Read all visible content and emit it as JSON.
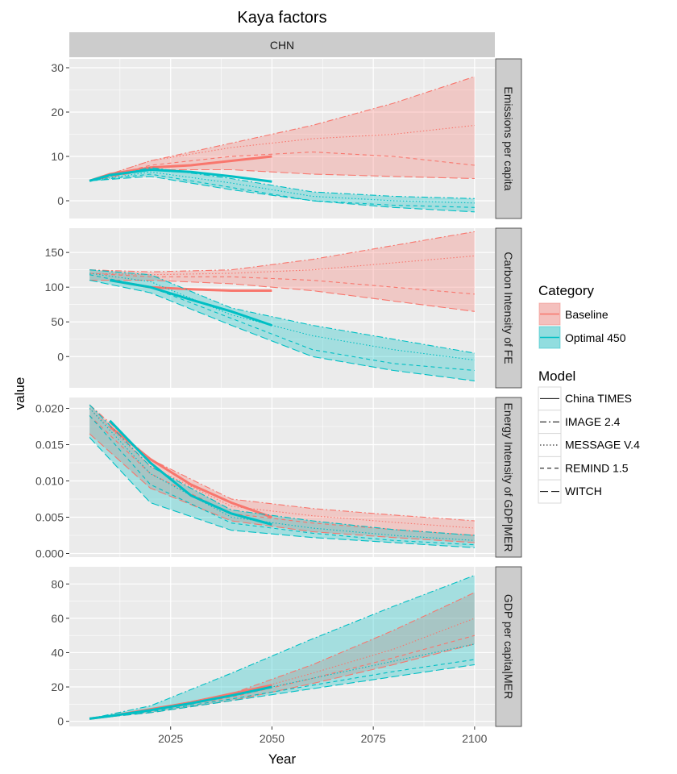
{
  "chart_data": {
    "type": "line",
    "title": "Kaya factors",
    "facet_label": "CHN",
    "xlabel": "Year",
    "ylabel": "value",
    "xlim": [
      2000,
      2105
    ],
    "x_ticks": [
      2025,
      2050,
      2075,
      2100
    ],
    "grid": true,
    "colors": {
      "Baseline": "#F8766D",
      "Optimal 450": "#00BFC4",
      "panel_bg": "#EBEBEB",
      "strip_bg": "#CCCCCC"
    },
    "legend": {
      "position": "right",
      "category_title": "Category",
      "categories": [
        "Baseline",
        "Optimal 450"
      ],
      "model_title": "Model",
      "models": [
        {
          "name": "China TIMES",
          "dash": "solid"
        },
        {
          "name": "IMAGE 2.4",
          "dash": "dashdot"
        },
        {
          "name": "MESSAGE V.4",
          "dash": "dotted"
        },
        {
          "name": "REMIND 1.5",
          "dash": "dashed"
        },
        {
          "name": "WITCH",
          "dash": "longdash"
        }
      ]
    },
    "panels": [
      {
        "strip": "Emissions per capita",
        "ylim": [
          -4,
          32
        ],
        "yticks": [
          0,
          10,
          20,
          30
        ],
        "ytick_labels": [
          "0",
          "10",
          "20",
          "30"
        ],
        "series": [
          {
            "category": "Baseline",
            "model": "China TIMES",
            "x": [
              2005,
              2010,
              2020,
              2030,
              2040,
              2050
            ],
            "y": [
              4.5,
              6.0,
              7.5,
              8.0,
              9.0,
              10.0
            ]
          },
          {
            "category": "Baseline",
            "model": "IMAGE 2.4",
            "x": [
              2005,
              2020,
              2040,
              2060,
              2080,
              2100
            ],
            "y": [
              4.5,
              9,
              13,
              17,
              22,
              28
            ]
          },
          {
            "category": "Baseline",
            "model": "MESSAGE V.4",
            "x": [
              2005,
              2020,
              2040,
              2060,
              2080,
              2100
            ],
            "y": [
              4.5,
              9,
              12,
              14,
              15,
              17
            ]
          },
          {
            "category": "Baseline",
            "model": "REMIND 1.5",
            "x": [
              2005,
              2020,
              2040,
              2060,
              2080,
              2100
            ],
            "y": [
              4.5,
              8,
              10,
              11,
              10,
              8
            ]
          },
          {
            "category": "Baseline",
            "model": "WITCH",
            "x": [
              2005,
              2020,
              2040,
              2060,
              2080,
              2100
            ],
            "y": [
              4.5,
              7,
              7,
              6,
              5.5,
              5
            ]
          },
          {
            "category": "Optimal 450",
            "model": "China TIMES",
            "x": [
              2005,
              2010,
              2020,
              2030,
              2040,
              2050
            ],
            "y": [
              4.5,
              5.8,
              7.0,
              6.5,
              5.5,
              4.3
            ]
          },
          {
            "category": "Optimal 450",
            "model": "IMAGE 2.4",
            "x": [
              2005,
              2020,
              2040,
              2060,
              2080,
              2100
            ],
            "y": [
              4.5,
              7.5,
              5,
              2,
              1,
              0.5
            ]
          },
          {
            "category": "Optimal 450",
            "model": "MESSAGE V.4",
            "x": [
              2005,
              2020,
              2040,
              2060,
              2080,
              2100
            ],
            "y": [
              4.5,
              6.5,
              4,
              1,
              0,
              -0.5
            ]
          },
          {
            "category": "Optimal 450",
            "model": "REMIND 1.5",
            "x": [
              2005,
              2020,
              2040,
              2060,
              2080,
              2100
            ],
            "y": [
              4.5,
              6,
              3,
              0,
              -1,
              -1.5
            ]
          },
          {
            "category": "Optimal 450",
            "model": "WITCH",
            "x": [
              2005,
              2020,
              2040,
              2060,
              2080,
              2100
            ],
            "y": [
              4.5,
              5.5,
              2.5,
              0,
              -1.5,
              -2.5
            ]
          }
        ]
      },
      {
        "strip": "Carbon Intensity of FE",
        "ylim": [
          -45,
          185
        ],
        "yticks": [
          0,
          50,
          100,
          150
        ],
        "ytick_labels": [
          "0",
          "50",
          "100",
          "150"
        ],
        "series": [
          {
            "category": "Baseline",
            "model": "China TIMES",
            "x": [
              2010,
              2020,
              2030,
              2040,
              2050
            ],
            "y": [
              110,
              100,
              97,
              95,
              95
            ]
          },
          {
            "category": "Baseline",
            "model": "IMAGE 2.4",
            "x": [
              2005,
              2020,
              2040,
              2060,
              2080,
              2100
            ],
            "y": [
              125,
              122,
              125,
              140,
              160,
              180
            ]
          },
          {
            "category": "Baseline",
            "model": "MESSAGE V.4",
            "x": [
              2005,
              2020,
              2040,
              2060,
              2080,
              2100
            ],
            "y": [
              120,
              118,
              120,
              125,
              135,
              145
            ]
          },
          {
            "category": "Baseline",
            "model": "REMIND 1.5",
            "x": [
              2005,
              2020,
              2040,
              2060,
              2080,
              2100
            ],
            "y": [
              120,
              115,
              115,
              110,
              100,
              90
            ]
          },
          {
            "category": "Baseline",
            "model": "WITCH",
            "x": [
              2005,
              2020,
              2040,
              2060,
              2080,
              2100
            ],
            "y": [
              110,
              110,
              105,
              95,
              80,
              65
            ]
          },
          {
            "category": "Optimal 450",
            "model": "China TIMES",
            "x": [
              2010,
              2020,
              2030,
              2040,
              2050
            ],
            "y": [
              110,
              100,
              82,
              65,
              45
            ]
          },
          {
            "category": "Optimal 450",
            "model": "IMAGE 2.4",
            "x": [
              2005,
              2020,
              2040,
              2060,
              2080,
              2100
            ],
            "y": [
              125,
              118,
              70,
              45,
              25,
              5
            ]
          },
          {
            "category": "Optimal 450",
            "model": "MESSAGE V.4",
            "x": [
              2005,
              2020,
              2040,
              2060,
              2080,
              2100
            ],
            "y": [
              120,
              108,
              60,
              30,
              10,
              -5
            ]
          },
          {
            "category": "Optimal 450",
            "model": "REMIND 1.5",
            "x": [
              2005,
              2020,
              2040,
              2060,
              2080,
              2100
            ],
            "y": [
              118,
              100,
              55,
              10,
              -10,
              -20
            ]
          },
          {
            "category": "Optimal 450",
            "model": "WITCH",
            "x": [
              2005,
              2020,
              2040,
              2060,
              2080,
              2100
            ],
            "y": [
              110,
              92,
              45,
              0,
              -20,
              -35
            ]
          }
        ]
      },
      {
        "strip": "Energy Intensity of GDP|MER",
        "ylim": [
          -0.0005,
          0.0215
        ],
        "yticks": [
          0,
          0.005,
          0.01,
          0.015,
          0.02
        ],
        "ytick_labels": [
          "0.000",
          "0.005",
          "0.010",
          "0.015",
          "0.020"
        ],
        "series": [
          {
            "category": "Baseline",
            "model": "China TIMES",
            "x": [
              2010,
              2020,
              2030,
              2040,
              2050
            ],
            "y": [
              0.0175,
              0.013,
              0.0095,
              0.007,
              0.005
            ]
          },
          {
            "category": "Baseline",
            "model": "IMAGE 2.4",
            "x": [
              2005,
              2020,
              2040,
              2060,
              2080,
              2100
            ],
            "y": [
              0.0205,
              0.013,
              0.0075,
              0.0062,
              0.0053,
              0.0045
            ]
          },
          {
            "category": "Baseline",
            "model": "MESSAGE V.4",
            "x": [
              2005,
              2020,
              2040,
              2060,
              2080,
              2100
            ],
            "y": [
              0.02,
              0.012,
              0.0065,
              0.0052,
              0.0043,
              0.0035
            ]
          },
          {
            "category": "Baseline",
            "model": "REMIND 1.5",
            "x": [
              2005,
              2020,
              2040,
              2060,
              2080,
              2100
            ],
            "y": [
              0.019,
              0.011,
              0.0055,
              0.0042,
              0.0033,
              0.0025
            ]
          },
          {
            "category": "Baseline",
            "model": "WITCH",
            "x": [
              2005,
              2020,
              2040,
              2060,
              2080,
              2100
            ],
            "y": [
              0.0165,
              0.009,
              0.0045,
              0.003,
              0.0022,
              0.0015
            ]
          },
          {
            "category": "Optimal 450",
            "model": "China TIMES",
            "x": [
              2010,
              2020,
              2030,
              2040,
              2050
            ],
            "y": [
              0.0183,
              0.0125,
              0.008,
              0.0055,
              0.004
            ]
          },
          {
            "category": "Optimal 450",
            "model": "IMAGE 2.4",
            "x": [
              2005,
              2020,
              2040,
              2060,
              2080,
              2100
            ],
            "y": [
              0.0205,
              0.012,
              0.006,
              0.0045,
              0.0033,
              0.0025
            ]
          },
          {
            "category": "Optimal 450",
            "model": "MESSAGE V.4",
            "x": [
              2005,
              2020,
              2040,
              2060,
              2080,
              2100
            ],
            "y": [
              0.02,
              0.011,
              0.005,
              0.0035,
              0.0025,
              0.0018
            ]
          },
          {
            "category": "Optimal 450",
            "model": "REMIND 1.5",
            "x": [
              2005,
              2020,
              2040,
              2060,
              2080,
              2100
            ],
            "y": [
              0.019,
              0.0095,
              0.0042,
              0.0028,
              0.0018,
              0.0012
            ]
          },
          {
            "category": "Optimal 450",
            "model": "WITCH",
            "x": [
              2005,
              2020,
              2040,
              2060,
              2080,
              2100
            ],
            "y": [
              0.016,
              0.007,
              0.0032,
              0.0022,
              0.0015,
              0.0008
            ]
          }
        ]
      },
      {
        "strip": "GDP per capita|MER",
        "ylim": [
          -3,
          90
        ],
        "yticks": [
          0,
          20,
          40,
          60,
          80
        ],
        "ytick_labels": [
          "0",
          "20",
          "40",
          "60",
          "80"
        ],
        "series": [
          {
            "category": "Baseline",
            "model": "China TIMES",
            "x": [
              2005,
              2010,
              2020,
              2030,
              2040,
              2050
            ],
            "y": [
              1.5,
              3,
              7,
              11,
              16,
              21
            ]
          },
          {
            "category": "Baseline",
            "model": "IMAGE 2.4",
            "x": [
              2005,
              2020,
              2040,
              2060,
              2080,
              2100
            ],
            "y": [
              1.5,
              7,
              16,
              33,
              53,
              75
            ]
          },
          {
            "category": "Baseline",
            "model": "MESSAGE V.4",
            "x": [
              2005,
              2020,
              2040,
              2060,
              2080,
              2100
            ],
            "y": [
              1.5,
              6,
              15,
              28,
              42,
              60
            ]
          },
          {
            "category": "Baseline",
            "model": "REMIND 1.5",
            "x": [
              2005,
              2020,
              2040,
              2060,
              2080,
              2100
            ],
            "y": [
              1.5,
              6,
              14,
              25,
              37,
              50
            ]
          },
          {
            "category": "Baseline",
            "model": "WITCH",
            "x": [
              2005,
              2020,
              2040,
              2060,
              2080,
              2100
            ],
            "y": [
              1.5,
              5,
              12,
              22,
              33,
              45
            ]
          },
          {
            "category": "Optimal 450",
            "model": "China TIMES",
            "x": [
              2005,
              2010,
              2020,
              2030,
              2040,
              2050
            ],
            "y": [
              1.5,
              3,
              6.5,
              10.5,
              15,
              20
            ]
          },
          {
            "category": "Optimal 450",
            "model": "IMAGE 2.4",
            "x": [
              2005,
              2020,
              2040,
              2060,
              2080,
              2100
            ],
            "y": [
              1.5,
              9,
              28,
              48,
              67,
              85
            ]
          },
          {
            "category": "Optimal 450",
            "model": "MESSAGE V.4",
            "x": [
              2005,
              2020,
              2040,
              2060,
              2080,
              2100
            ],
            "y": [
              1.5,
              6,
              15,
              25,
              35,
              45
            ]
          },
          {
            "category": "Optimal 450",
            "model": "REMIND 1.5",
            "x": [
              2005,
              2020,
              2040,
              2060,
              2080,
              2100
            ],
            "y": [
              1.5,
              5.5,
              13,
              21,
              29,
              36
            ]
          },
          {
            "category": "Optimal 450",
            "model": "WITCH",
            "x": [
              2005,
              2020,
              2040,
              2060,
              2080,
              2100
            ],
            "y": [
              1.5,
              5,
              12,
              19,
              26,
              33
            ]
          }
        ]
      }
    ]
  }
}
